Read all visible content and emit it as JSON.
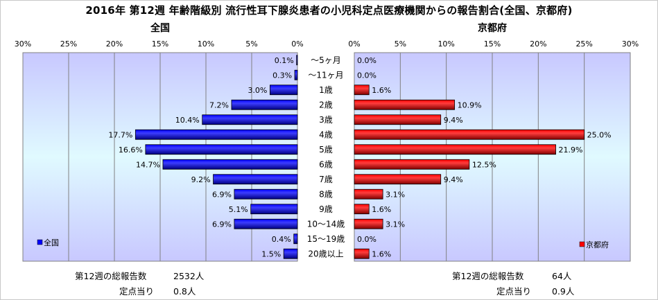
{
  "title": "2016年 第12週 年齢階級別 流行性耳下腺炎患者の小児科定点医療機関からの報告割合(全国、京都府)",
  "chart_data": [
    {
      "type": "bar",
      "orientation": "horizontal",
      "direction": "reversed",
      "title": "全国",
      "categories": [
        "～5ヶ月",
        "～11ヶ月",
        "1歳",
        "2歳",
        "3歳",
        "4歳",
        "5歳",
        "6歳",
        "7歳",
        "8歳",
        "9歳",
        "10～14歳",
        "15～19歳",
        "20歳以上"
      ],
      "series": [
        {
          "name": "全国",
          "color": "#0000ff",
          "values": [
            0.1,
            0.3,
            3.0,
            7.2,
            10.4,
            17.7,
            16.6,
            14.7,
            9.2,
            6.9,
            5.1,
            6.9,
            0.4,
            1.5
          ],
          "labels": [
            "0.1%",
            "0.3%",
            "3.0%",
            "7.2%",
            "10.4%",
            "17.7%",
            "16.6%",
            "14.7%",
            "9.2%",
            "6.9%",
            "5.1%",
            "6.9%",
            "0.4%",
            "1.5%"
          ]
        }
      ],
      "xlim": [
        0,
        30
      ],
      "ticks": [
        "0%",
        "5%",
        "10%",
        "15%",
        "20%",
        "25%",
        "30%"
      ],
      "legend": "bottom-left",
      "grid": true
    },
    {
      "type": "bar",
      "orientation": "horizontal",
      "title": "京都府",
      "categories": [
        "～5ヶ月",
        "～11ヶ月",
        "1歳",
        "2歳",
        "3歳",
        "4歳",
        "5歳",
        "6歳",
        "7歳",
        "8歳",
        "9歳",
        "10～14歳",
        "15～19歳",
        "20歳以上"
      ],
      "series": [
        {
          "name": "京都府",
          "color": "#ff0000",
          "values": [
            0.0,
            0.0,
            1.6,
            10.9,
            9.4,
            25.0,
            21.9,
            12.5,
            9.4,
            3.1,
            1.6,
            3.1,
            0.0,
            1.6
          ],
          "labels": [
            "0.0%",
            "0.0%",
            "1.6%",
            "10.9%",
            "9.4%",
            "25.0%",
            "21.9%",
            "12.5%",
            "9.4%",
            "3.1%",
            "1.6%",
            "3.1%",
            "0.0%",
            "1.6%"
          ]
        }
      ],
      "xlim": [
        0,
        30
      ],
      "ticks": [
        "0%",
        "5%",
        "10%",
        "15%",
        "20%",
        "25%",
        "30%"
      ],
      "legend": "bottom-right",
      "grid": true
    }
  ],
  "footer": {
    "national_total_label": "第12週の総報告数",
    "national_total_value": "2532人",
    "national_per_site_label": "定点当り",
    "national_per_site_value": "0.8人",
    "kyoto_total_label": "第12週の総報告数",
    "kyoto_total_value": "64人",
    "kyoto_per_site_label": "定点当り",
    "kyoto_per_site_value": "0.9人"
  }
}
